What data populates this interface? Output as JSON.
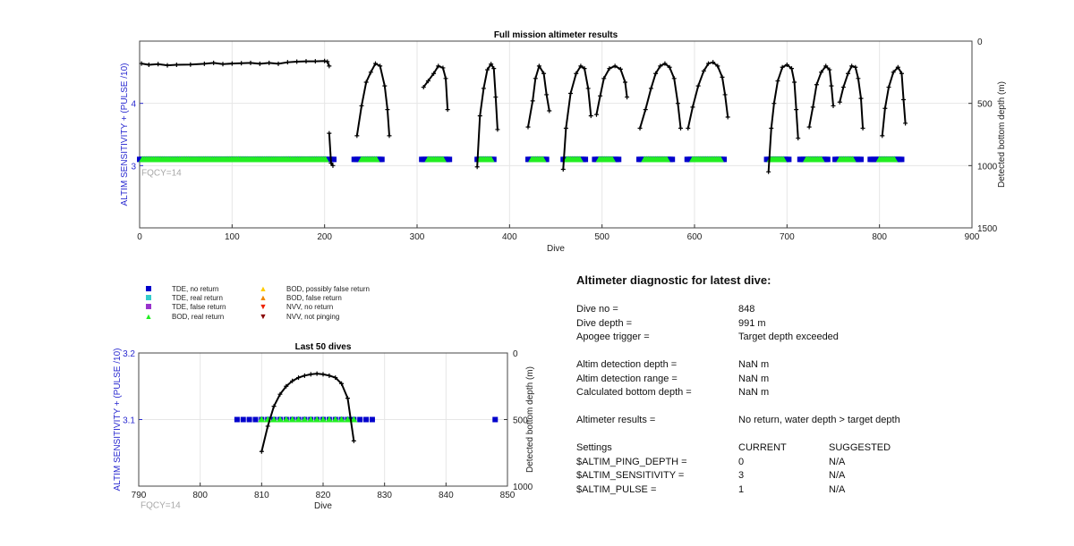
{
  "chart_data": [
    {
      "type": "scatter",
      "title": "Full mission altimeter results",
      "xlabel": "Dive",
      "ylabel_left": "ALTIM SENSITIVITY + (PULSE /10)",
      "ylabel_right": "Detected bottom depth (m)",
      "annotation": "FQCY=14",
      "xlim": [
        0,
        900
      ],
      "xticks": [
        0,
        100,
        200,
        300,
        400,
        500,
        600,
        700,
        800,
        900
      ],
      "ylim_left": [
        2.0,
        5.0
      ],
      "yticks_left": [
        3,
        4
      ],
      "ylim_right": [
        0,
        1500
      ],
      "right_axis_reversed": true,
      "yticks_right": [
        0,
        500,
        1000,
        1500
      ],
      "grid": true,
      "series": [
        {
          "marker": "square",
          "color": "#0000cc",
          "sensitivity": 3.1,
          "ranges": [
            [
              0,
              210
            ],
            [
              232,
              262
            ],
            [
              305,
              335
            ],
            [
              365,
              384
            ],
            [
              420,
              440
            ],
            [
              458,
              482
            ],
            [
              492,
              518
            ],
            [
              540,
              576
            ],
            [
              592,
              632
            ],
            [
              678,
              702
            ],
            [
              714,
              744
            ],
            [
              752,
              780
            ],
            [
              790,
              825
            ]
          ]
        },
        {
          "marker": "triangle",
          "color": "#22ee22",
          "sensitivity": 3.1,
          "ranges": [
            [
              3,
              202
            ],
            [
              240,
              256
            ],
            [
              312,
              328
            ],
            [
              368,
              380
            ],
            [
              424,
              436
            ],
            [
              462,
              476
            ],
            [
              497,
              512
            ],
            [
              546,
              570
            ],
            [
              598,
              628
            ],
            [
              682,
              696
            ],
            [
              721,
              737
            ],
            [
              757,
              772
            ],
            [
              800,
              816
            ]
          ]
        }
      ],
      "bottom_depth_track": {
        "color": "#000000",
        "segments": [
          [
            [
              2,
              180
            ],
            [
              10,
              190
            ],
            [
              20,
              185
            ],
            [
              30,
              195
            ],
            [
              40,
              190
            ],
            [
              55,
              188
            ],
            [
              70,
              182
            ],
            [
              80,
              175
            ],
            [
              90,
              185
            ],
            [
              100,
              180
            ],
            [
              110,
              178
            ],
            [
              120,
              175
            ],
            [
              130,
              182
            ],
            [
              140,
              175
            ],
            [
              150,
              182
            ],
            [
              160,
              170
            ],
            [
              170,
              165
            ],
            [
              180,
              162
            ],
            [
              190,
              162
            ],
            [
              200,
              160
            ],
            [
              203,
              165
            ],
            [
              205,
              200
            ]
          ],
          [
            [
              205,
              740
            ],
            [
              207,
              980
            ],
            [
              209,
              1000
            ]
          ],
          [
            [
              235,
              760
            ],
            [
              240,
              520
            ],
            [
              245,
              330
            ],
            [
              250,
              250
            ],
            [
              255,
              180
            ],
            [
              260,
              200
            ],
            [
              265,
              360
            ],
            [
              268,
              550
            ],
            [
              270,
              760
            ]
          ],
          [
            [
              307,
              370
            ],
            [
              312,
              320
            ],
            [
              318,
              260
            ],
            [
              323,
              200
            ],
            [
              328,
              215
            ],
            [
              331,
              300
            ],
            [
              333,
              550
            ]
          ],
          [
            [
              365,
              1010
            ],
            [
              368,
              600
            ],
            [
              372,
              380
            ],
            [
              376,
              230
            ],
            [
              380,
              185
            ],
            [
              383,
              220
            ],
            [
              385,
              450
            ],
            [
              387,
              710
            ]
          ],
          [
            [
              420,
              690
            ],
            [
              425,
              480
            ],
            [
              428,
              300
            ],
            [
              432,
              200
            ],
            [
              437,
              260
            ],
            [
              440,
              430
            ],
            [
              443,
              560
            ]
          ],
          [
            [
              458,
              1030
            ],
            [
              461,
              700
            ],
            [
              466,
              420
            ],
            [
              472,
              260
            ],
            [
              477,
              200
            ],
            [
              481,
              220
            ],
            [
              485,
              380
            ],
            [
              488,
              600
            ]
          ],
          [
            [
              494,
              590
            ],
            [
              498,
              440
            ],
            [
              502,
              300
            ],
            [
              508,
              220
            ],
            [
              514,
              200
            ],
            [
              520,
              225
            ],
            [
              525,
              330
            ],
            [
              527,
              450
            ]
          ],
          [
            [
              541,
              700
            ],
            [
              547,
              550
            ],
            [
              553,
              380
            ],
            [
              558,
              260
            ],
            [
              563,
              200
            ],
            [
              568,
              180
            ],
            [
              573,
              210
            ],
            [
              578,
              300
            ],
            [
              582,
              500
            ],
            [
              585,
              700
            ]
          ],
          [
            [
              593,
              700
            ],
            [
              598,
              530
            ],
            [
              604,
              360
            ],
            [
              610,
              240
            ],
            [
              615,
              180
            ],
            [
              620,
              170
            ],
            [
              625,
              200
            ],
            [
              630,
              290
            ],
            [
              633,
              430
            ],
            [
              636,
              610
            ]
          ],
          [
            [
              680,
              1050
            ],
            [
              683,
              700
            ],
            [
              686,
              500
            ],
            [
              690,
              320
            ],
            [
              695,
              210
            ],
            [
              700,
              190
            ],
            [
              705,
              220
            ],
            [
              708,
              330
            ],
            [
              710,
              550
            ],
            [
              712,
              780
            ]
          ],
          [
            [
              724,
              690
            ],
            [
              728,
              530
            ],
            [
              732,
              350
            ],
            [
              737,
              250
            ],
            [
              742,
              200
            ],
            [
              746,
              230
            ],
            [
              748,
              360
            ],
            [
              750,
              520
            ]
          ],
          [
            [
              757,
              490
            ],
            [
              761,
              370
            ],
            [
              766,
              260
            ],
            [
              770,
              200
            ],
            [
              774,
              210
            ],
            [
              777,
              300
            ],
            [
              780,
              460
            ],
            [
              782,
              700
            ]
          ],
          [
            [
              803,
              760
            ],
            [
              806,
              540
            ],
            [
              810,
              370
            ],
            [
              815,
              250
            ],
            [
              820,
              210
            ],
            [
              824,
              260
            ],
            [
              826,
              470
            ],
            [
              828,
              660
            ]
          ]
        ]
      }
    },
    {
      "type": "scatter",
      "title": "Last 50 dives",
      "xlabel": "Dive",
      "ylabel_left": "ALTIM SENSITIVITY + (PULSE /10)",
      "ylabel_right": "Detected bottom depth (m)",
      "annotation": "FQCY=14",
      "xlim": [
        790,
        850
      ],
      "xticks": [
        790,
        800,
        810,
        820,
        830,
        840,
        850
      ],
      "ylim_left": [
        3.0,
        3.2
      ],
      "yticks_left": [
        3.1,
        3.2
      ],
      "ylim_right": [
        0,
        1000
      ],
      "right_axis_reversed": true,
      "yticks_right": [
        0,
        500,
        1000
      ],
      "grid": true,
      "series": [
        {
          "marker": "square",
          "color": "#0000cc",
          "points": [
            [
              806,
              3.1
            ],
            [
              807,
              3.1
            ],
            [
              808,
              3.1
            ],
            [
              809,
              3.1
            ],
            [
              810,
              3.1
            ],
            [
              811,
              3.1
            ],
            [
              812,
              3.1
            ],
            [
              813,
              3.1
            ],
            [
              814,
              3.1
            ],
            [
              815,
              3.1
            ],
            [
              816,
              3.1
            ],
            [
              817,
              3.1
            ],
            [
              818,
              3.1
            ],
            [
              819,
              3.1
            ],
            [
              820,
              3.1
            ],
            [
              821,
              3.1
            ],
            [
              822,
              3.1
            ],
            [
              823,
              3.1
            ],
            [
              824,
              3.1
            ],
            [
              825,
              3.1
            ],
            [
              826,
              3.1
            ],
            [
              827,
              3.1
            ],
            [
              828,
              3.1
            ],
            [
              848,
              3.1
            ]
          ]
        },
        {
          "marker": "triangle",
          "color": "#22ee22",
          "points": [
            [
              810,
              3.1
            ],
            [
              811,
              3.1
            ],
            [
              812,
              3.1
            ],
            [
              813,
              3.1
            ],
            [
              814,
              3.1
            ],
            [
              815,
              3.1
            ],
            [
              816,
              3.1
            ],
            [
              817,
              3.1
            ],
            [
              818,
              3.1
            ],
            [
              819,
              3.1
            ],
            [
              820,
              3.1
            ],
            [
              821,
              3.1
            ],
            [
              822,
              3.1
            ],
            [
              823,
              3.1
            ],
            [
              824,
              3.1
            ],
            [
              825,
              3.1
            ]
          ]
        }
      ],
      "bottom_depth_track": {
        "color": "#000000",
        "points": [
          [
            810,
            740
          ],
          [
            811,
            550
          ],
          [
            812,
            400
          ],
          [
            813,
            310
          ],
          [
            814,
            250
          ],
          [
            815,
            210
          ],
          [
            816,
            185
          ],
          [
            817,
            170
          ],
          [
            818,
            160
          ],
          [
            819,
            155
          ],
          [
            820,
            160
          ],
          [
            821,
            170
          ],
          [
            822,
            185
          ],
          [
            823,
            230
          ],
          [
            824,
            340
          ],
          [
            825,
            660
          ]
        ]
      }
    }
  ],
  "legend": [
    {
      "label": "TDE, no return",
      "marker": "square",
      "color": "#0000cc"
    },
    {
      "label": "TDE, real return",
      "marker": "square",
      "color": "#33cccc"
    },
    {
      "label": "TDE, false return",
      "marker": "square",
      "color": "#9933cc"
    },
    {
      "label": "BOD, real return",
      "marker": "triangle-up",
      "color": "#22ee22"
    },
    {
      "label": "BOD, possibly false return",
      "marker": "triangle-up",
      "color": "#ffcc00"
    },
    {
      "label": "BOD, false return",
      "marker": "triangle-up",
      "color": "#ee8800"
    },
    {
      "label": "NVV, no return",
      "marker": "triangle-down",
      "color": "#ee2200"
    },
    {
      "label": "NVV, not pinging",
      "marker": "triangle-down",
      "color": "#880000"
    }
  ],
  "diagnostic": {
    "title": "Altimeter diagnostic for latest dive:",
    "dive_no_label": "Dive no =",
    "dive_no": "848",
    "dive_depth_label": "Dive depth =",
    "dive_depth": "991 m",
    "apogee_label": "Apogee trigger =",
    "apogee": "Target depth exceeded",
    "detect_depth_label": "Altim detection depth =",
    "detect_depth": "NaN m",
    "detect_range_label": "Altim detection range =",
    "detect_range": "NaN m",
    "calc_depth_label": "Calculated bottom depth =",
    "calc_depth": "NaN m",
    "results_label": "Altimeter results =",
    "results": "No return, water depth > target depth",
    "settings_label": "Settings",
    "current_header": "CURRENT",
    "suggested_header": "SUGGESTED",
    "ping_depth_label": "$ALTIM_PING_DEPTH =",
    "ping_depth_current": "0",
    "ping_depth_suggested": "N/A",
    "sensitivity_label": "$ALTIM_SENSITIVITY =",
    "sensitivity_current": "3",
    "sensitivity_suggested": "N/A",
    "pulse_label": "$ALTIM_PULSE =",
    "pulse_current": "1",
    "pulse_suggested": "N/A"
  }
}
